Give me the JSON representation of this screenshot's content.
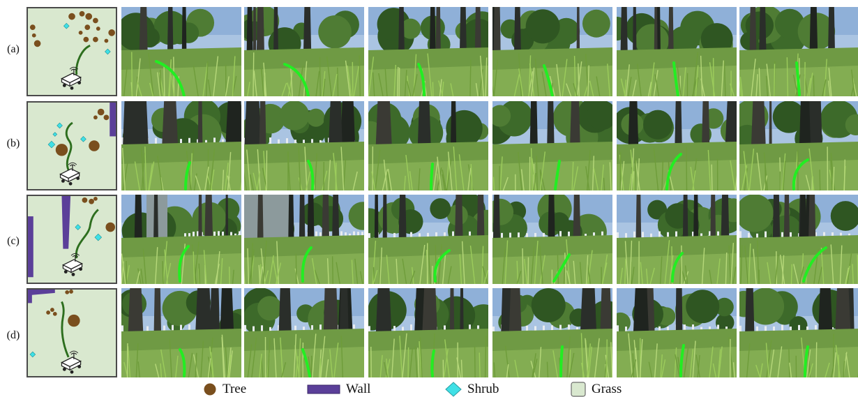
{
  "rows": [
    {
      "label": "(a)"
    },
    {
      "label": "(b)"
    },
    {
      "label": "(c)"
    },
    {
      "label": "(d)"
    }
  ],
  "legend": [
    {
      "label": "Tree",
      "icon": "tree-marker",
      "color": "#7a4f1e"
    },
    {
      "label": "Wall",
      "icon": "wall-marker",
      "color": "#5b3f99"
    },
    {
      "label": "Shrub",
      "icon": "shrub-marker",
      "color": "#3fe0e6"
    },
    {
      "label": "Grass",
      "icon": "grass-marker",
      "color": "#d9e8cf"
    }
  ],
  "colors": {
    "grass": "#d9e8cf",
    "tree": "#7a4f1e",
    "wall": "#5b3f99",
    "shrub": "#3fe0e6",
    "path_map": "#2d6e1e",
    "path_camera": "#22ee22"
  }
}
